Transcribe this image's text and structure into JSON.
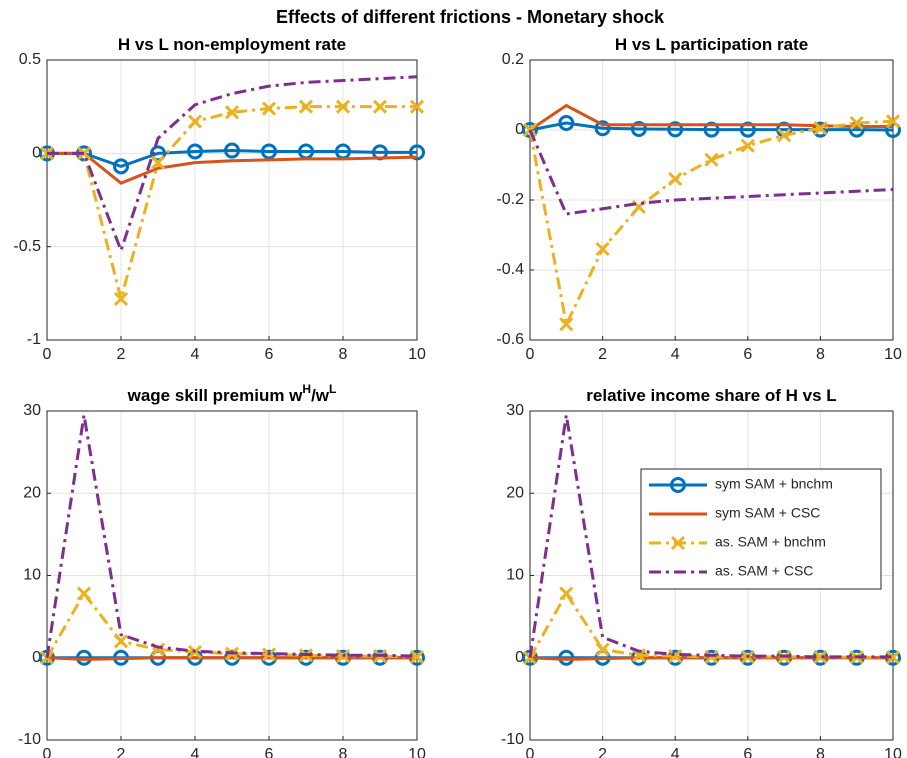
{
  "title": "Effects of different frictions - Monetary shock",
  "chart_data": [
    {
      "type": "line",
      "title": "H vs L non-employment rate",
      "x": [
        0,
        1,
        2,
        3,
        4,
        5,
        6,
        7,
        8,
        9,
        10
      ],
      "xlim": [
        0,
        10
      ],
      "xticks": [
        0,
        2,
        4,
        6,
        8,
        10
      ],
      "ylim": [
        -1,
        0.5
      ],
      "yticks": [
        -1,
        -0.5,
        0,
        0.5
      ],
      "grid": true,
      "series": [
        {
          "color": "#0072BD",
          "marker": "o",
          "linestyle": "-",
          "values": [
            0,
            0,
            -0.07,
            0,
            0.01,
            0.015,
            0.01,
            0.01,
            0.01,
            0.005,
            0.005
          ]
        },
        {
          "color": "#D95319",
          "marker": "none",
          "linestyle": "-",
          "values": [
            0,
            0,
            -0.16,
            -0.08,
            -0.05,
            -0.04,
            -0.035,
            -0.03,
            -0.03,
            -0.025,
            -0.02
          ]
        },
        {
          "color": "#EDB120",
          "marker": "x",
          "linestyle": "-.",
          "values": [
            0,
            0,
            -0.78,
            -0.05,
            0.17,
            0.22,
            0.24,
            0.25,
            0.25,
            0.25,
            0.25
          ]
        },
        {
          "color": "#7E2F8E",
          "marker": "none",
          "linestyle": "-.",
          "values": [
            0,
            0,
            -0.52,
            0.08,
            0.26,
            0.32,
            0.36,
            0.38,
            0.39,
            0.4,
            0.41
          ]
        }
      ]
    },
    {
      "type": "line",
      "title": "H vs L participation rate",
      "x": [
        0,
        1,
        2,
        3,
        4,
        5,
        6,
        7,
        8,
        9,
        10
      ],
      "xlim": [
        0,
        10
      ],
      "xticks": [
        0,
        2,
        4,
        6,
        8,
        10
      ],
      "ylim": [
        -0.6,
        0.2
      ],
      "yticks": [
        -0.6,
        -0.4,
        -0.2,
        0,
        0.2
      ],
      "grid": true,
      "series": [
        {
          "color": "#0072BD",
          "marker": "o",
          "linestyle": "-",
          "values": [
            0,
            0.02,
            0.005,
            0.003,
            0.002,
            0.001,
            0.001,
            0.001,
            0.001,
            0.001,
            0
          ]
        },
        {
          "color": "#D95319",
          "marker": "none",
          "linestyle": "-",
          "values": [
            0,
            0.07,
            0.015,
            0.015,
            0.015,
            0.015,
            0.015,
            0.015,
            0.012,
            0.01,
            0.01
          ]
        },
        {
          "color": "#EDB120",
          "marker": "x",
          "linestyle": "-.",
          "values": [
            0,
            -0.555,
            -0.34,
            -0.22,
            -0.14,
            -0.085,
            -0.045,
            -0.015,
            0.005,
            0.02,
            0.025
          ]
        },
        {
          "color": "#7E2F8E",
          "marker": "none",
          "linestyle": "-.",
          "values": [
            0,
            -0.24,
            -0.225,
            -0.21,
            -0.2,
            -0.195,
            -0.19,
            -0.185,
            -0.18,
            -0.175,
            -0.17
          ]
        }
      ]
    },
    {
      "type": "line",
      "title": "wage skill premium w^{H}/w^{L}",
      "x": [
        0,
        1,
        2,
        3,
        4,
        5,
        6,
        7,
        8,
        9,
        10
      ],
      "xlim": [
        0,
        10
      ],
      "xticks": [
        0,
        2,
        4,
        6,
        8,
        10
      ],
      "ylim": [
        -10,
        30
      ],
      "yticks": [
        -10,
        0,
        10,
        20,
        30
      ],
      "grid": true,
      "series": [
        {
          "color": "#0072BD",
          "marker": "o",
          "linestyle": "-",
          "values": [
            0,
            0,
            0,
            0,
            0,
            0,
            0,
            0,
            0,
            0,
            0
          ]
        },
        {
          "color": "#D95319",
          "marker": "none",
          "linestyle": "-",
          "values": [
            0,
            -0.2,
            -0.1,
            0,
            0,
            0,
            0,
            0,
            0,
            0,
            0
          ]
        },
        {
          "color": "#EDB120",
          "marker": "x",
          "linestyle": "-.",
          "values": [
            0,
            7.8,
            2,
            1,
            0.7,
            0.5,
            0.4,
            0.3,
            0.2,
            0.2,
            0.1
          ]
        },
        {
          "color": "#7E2F8E",
          "marker": "none",
          "linestyle": "-.",
          "values": [
            0,
            29.5,
            2.8,
            1.3,
            0.8,
            0.6,
            0.5,
            0.4,
            0.3,
            0.3,
            0.2
          ]
        }
      ]
    },
    {
      "type": "line",
      "title": "relative income share of H vs L",
      "x": [
        0,
        1,
        2,
        3,
        4,
        5,
        6,
        7,
        8,
        9,
        10
      ],
      "xlim": [
        0,
        10
      ],
      "xticks": [
        0,
        2,
        4,
        6,
        8,
        10
      ],
      "ylim": [
        -10,
        30
      ],
      "yticks": [
        -10,
        0,
        10,
        20,
        30
      ],
      "grid": true,
      "legend": "northeast",
      "series": [
        {
          "name": "sym SAM + bnchm",
          "color": "#0072BD",
          "marker": "o",
          "linestyle": "-",
          "values": [
            0,
            0,
            0,
            0,
            0,
            0,
            0,
            0,
            0,
            0,
            0
          ]
        },
        {
          "name": "sym SAM + CSC",
          "color": "#D95319",
          "marker": "none",
          "linestyle": "-",
          "values": [
            0,
            -0.2,
            -0.1,
            0,
            0,
            0,
            0,
            0,
            0,
            0,
            0
          ]
        },
        {
          "name": "as. SAM + bnchm",
          "color": "#EDB120",
          "marker": "x",
          "linestyle": "-.",
          "values": [
            0,
            7.8,
            1,
            0.3,
            0.2,
            0.1,
            0.1,
            0.1,
            0.1,
            0.05,
            0.05
          ]
        },
        {
          "name": "as. SAM + CSC",
          "color": "#7E2F8E",
          "marker": "none",
          "linestyle": "-.",
          "values": [
            0,
            29.5,
            2.5,
            0.8,
            0.4,
            0.3,
            0.2,
            0.2,
            0.1,
            0.1,
            0.1
          ]
        }
      ]
    }
  ]
}
